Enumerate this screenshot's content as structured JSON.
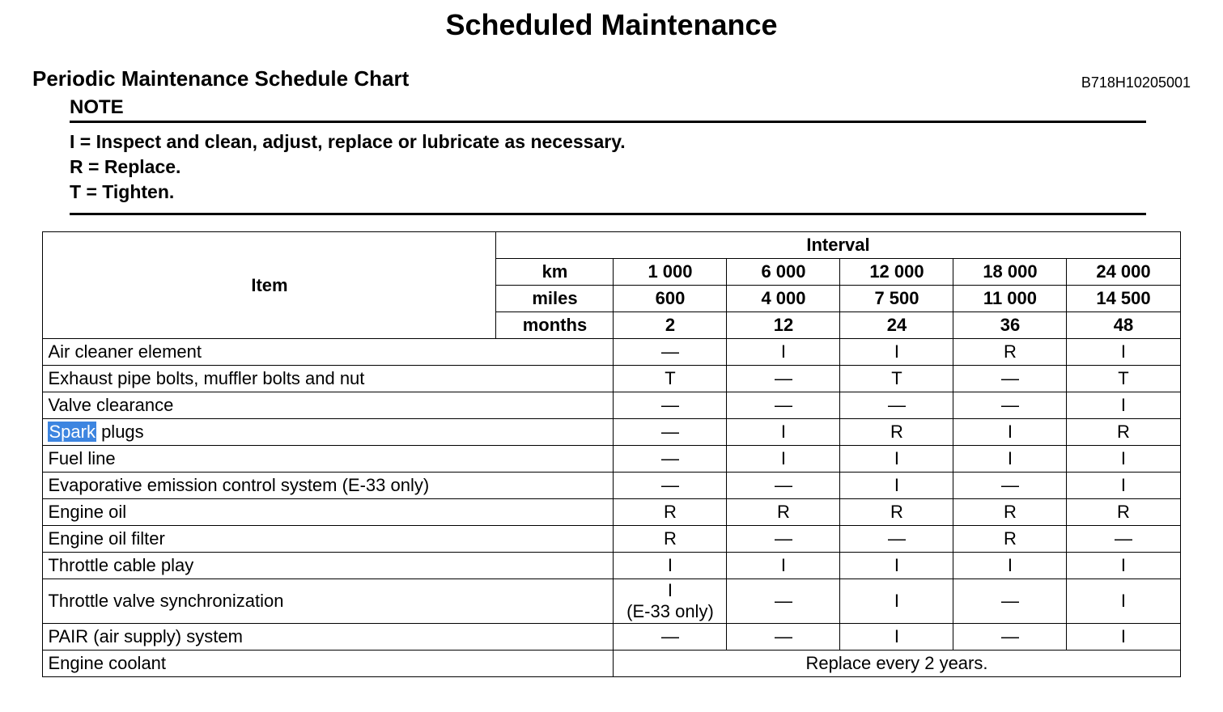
{
  "title": "Scheduled Maintenance",
  "subtitle": "Periodic Maintenance Schedule Chart",
  "doc_number": "B718H10205001",
  "note_label": "NOTE",
  "note_lines": [
    "I = Inspect and clean, adjust, replace or lubricate as necessary.",
    "R = Replace.",
    "T = Tighten."
  ],
  "header": {
    "item": "Item",
    "interval": "Interval",
    "units": {
      "km": "km",
      "miles": "miles",
      "months": "months"
    },
    "km_vals": [
      "1 000",
      "6 000",
      "12 000",
      "18 000",
      "24 000"
    ],
    "miles_vals": [
      "600",
      "4 000",
      "7 500",
      "11 000",
      "14 500"
    ],
    "months_vals": [
      "2",
      "12",
      "24",
      "36",
      "48"
    ]
  },
  "rows": [
    {
      "label": "Air cleaner element",
      "v": [
        "—",
        "I",
        "I",
        "R",
        "I"
      ]
    },
    {
      "label": "Exhaust pipe bolts, muffler bolts and nut",
      "v": [
        "T",
        "—",
        "T",
        "—",
        "T"
      ]
    },
    {
      "label": "Valve clearance",
      "v": [
        "—",
        "—",
        "—",
        "—",
        "I"
      ]
    },
    {
      "label_hl": "Spark",
      "label_rest": " plugs",
      "v": [
        "—",
        "I",
        "R",
        "I",
        "R"
      ]
    },
    {
      "label": "Fuel line",
      "v": [
        "—",
        "I",
        "I",
        "I",
        "I"
      ]
    },
    {
      "label": "Evaporative emission control system (E-33 only)",
      "v": [
        "—",
        "—",
        "I",
        "—",
        "I"
      ]
    },
    {
      "label": "Engine oil",
      "v": [
        "R",
        "R",
        "R",
        "R",
        "R"
      ]
    },
    {
      "label": "Engine oil filter",
      "v": [
        "R",
        "—",
        "—",
        "R",
        "—"
      ]
    },
    {
      "label": "Throttle cable play",
      "v": [
        "I",
        "I",
        "I",
        "I",
        "I"
      ]
    },
    {
      "label": "Throttle valve synchronization",
      "v0_line1": "I",
      "v0_line2": "(E-33 only)",
      "v_rest": [
        "—",
        "I",
        "—",
        "I"
      ]
    },
    {
      "label": "PAIR (air supply) system",
      "v": [
        "—",
        "—",
        "I",
        "—",
        "I"
      ]
    },
    {
      "label": "Engine coolant",
      "span_text": "Replace every 2 years."
    }
  ],
  "colors": {
    "text": "#000000",
    "background": "#ffffff",
    "highlight_bg": "#3d85e0",
    "highlight_fg": "#ffffff",
    "border": "#000000"
  },
  "font": {
    "family": "Arial, Helvetica, sans-serif",
    "title_size_pt": 27,
    "subtitle_size_pt": 20,
    "note_size_pt": 17,
    "table_size_pt": 17
  }
}
